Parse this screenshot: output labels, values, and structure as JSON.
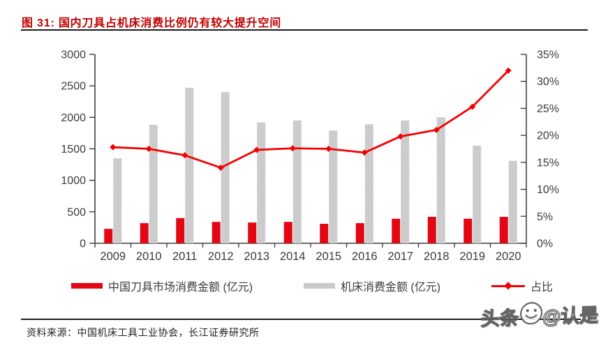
{
  "title": {
    "label": "图 31: 国内刀具占机床消费比例仍有较大提升空间"
  },
  "source": {
    "label": "资料来源：中国机床工具工业协会，长江证券研究所"
  },
  "watermark": {
    "prefix": "头条",
    "handle": "@认是"
  },
  "icons": {
    "watermark_logo": "smiley-face-icon"
  },
  "colors": {
    "tool_bar": "#e30613",
    "machine_bar": "#c9c9c9",
    "machine_bar_dot": "#dadada",
    "ratio_line": "#f40000",
    "title_red": "#c00000",
    "axis": "#3f3f3f",
    "rule": "#1a1a1a"
  },
  "legend": [
    {
      "label": "中国刀具市场消费金额 (亿元)",
      "type": "bar"
    },
    {
      "label": "机床消费金额 (亿元)",
      "type": "bar"
    },
    {
      "label": "占比",
      "type": "line"
    }
  ],
  "chart_data": {
    "type": "bar",
    "subtype": "grouped-bars-with-line-overlay",
    "title": "国内刀具占机床消费比例仍有较大提升空间",
    "categories": [
      "2009",
      "2010",
      "2011",
      "2012",
      "2013",
      "2014",
      "2015",
      "2016",
      "2017",
      "2018",
      "2019",
      "2020"
    ],
    "series": [
      {
        "name": "中国刀具市场消费金额 (亿元)",
        "type": "bar",
        "axis": "left",
        "values": [
          230,
          320,
          400,
          340,
          330,
          340,
          310,
          320,
          390,
          420,
          390,
          420
        ]
      },
      {
        "name": "机床消费金额 (亿元)",
        "type": "bar",
        "axis": "left",
        "values": [
          1350,
          1880,
          2470,
          2400,
          1920,
          1950,
          1790,
          1890,
          1950,
          2000,
          1550,
          1310
        ]
      },
      {
        "name": "占比",
        "type": "line",
        "axis": "right",
        "values": [
          17.8,
          17.5,
          16.3,
          14.0,
          17.3,
          17.6,
          17.5,
          16.8,
          19.8,
          21.0,
          25.3,
          32.0
        ]
      }
    ],
    "left_axis": {
      "min": 0,
      "max": 3000,
      "step": 500,
      "ticks": [
        "0",
        "500",
        "1000",
        "1500",
        "2000",
        "2500",
        "3000"
      ]
    },
    "right_axis": {
      "min": 0,
      "max": 35,
      "step": 5,
      "ticks": [
        "0%",
        "5%",
        "10%",
        "15%",
        "20%",
        "25%",
        "30%",
        "35%"
      ]
    },
    "grid": false,
    "legend_position": "bottom"
  }
}
